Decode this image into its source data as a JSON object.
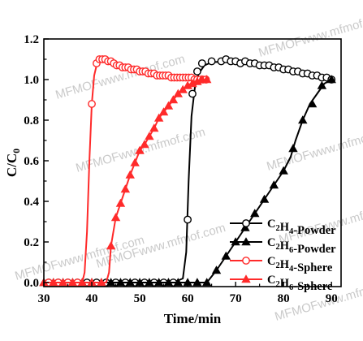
{
  "watermark": "MFMOFwww.mfmof.com",
  "chart_data": {
    "type": "line",
    "xlabel": "Time/min",
    "ylabel": "C/C0",
    "xlim": [
      30,
      92
    ],
    "ylim": [
      -0.02,
      1.2
    ],
    "xticks": [
      "30",
      "40",
      "50",
      "60",
      "70",
      "80",
      "90"
    ],
    "yticks": [
      "0.0",
      "0.2",
      "0.4",
      "0.6",
      "0.8",
      "1.0",
      "1.2"
    ],
    "legend_position": "bottom-right",
    "series": [
      {
        "name": "C2H4-Powder",
        "color": "#000000",
        "marker": "circle-open",
        "line": [
          [
            30,
            0
          ],
          [
            57,
            0
          ],
          [
            59,
            0.02
          ],
          [
            59.7,
            0.15
          ],
          [
            60.2,
            0.5
          ],
          [
            60.8,
            0.82
          ],
          [
            61.5,
            0.96
          ],
          [
            62.3,
            1.03
          ],
          [
            63.5,
            1.07
          ],
          [
            65,
            1.085
          ],
          [
            68,
            1.09
          ],
          [
            72,
            1.08
          ],
          [
            76,
            1.07
          ],
          [
            80,
            1.06
          ],
          [
            84,
            1.04
          ],
          [
            88,
            1.015
          ],
          [
            90,
            1.0
          ]
        ],
        "points": [
          [
            31,
            0
          ],
          [
            33,
            0
          ],
          [
            35,
            0
          ],
          [
            37,
            0
          ],
          [
            39,
            0
          ],
          [
            41,
            0
          ],
          [
            43,
            0
          ],
          [
            45,
            0
          ],
          [
            47,
            0
          ],
          [
            49,
            0
          ],
          [
            51,
            0
          ],
          [
            53,
            0
          ],
          [
            55,
            0
          ],
          [
            57,
            0
          ],
          [
            60,
            0.31
          ],
          [
            61,
            0.93
          ],
          [
            62,
            1.04
          ],
          [
            63,
            1.08
          ],
          [
            65,
            1.09
          ],
          [
            67,
            1.09
          ],
          [
            68,
            1.1
          ],
          [
            69,
            1.09
          ],
          [
            70,
            1.09
          ],
          [
            71,
            1.08
          ],
          [
            72,
            1.09
          ],
          [
            73,
            1.08
          ],
          [
            74,
            1.08
          ],
          [
            75,
            1.07
          ],
          [
            76,
            1.07
          ],
          [
            77,
            1.07
          ],
          [
            78,
            1.06
          ],
          [
            79,
            1.06
          ],
          [
            80,
            1.05
          ],
          [
            81,
            1.05
          ],
          [
            82,
            1.04
          ],
          [
            83,
            1.04
          ],
          [
            84,
            1.03
          ],
          [
            85,
            1.03
          ],
          [
            86,
            1.02
          ],
          [
            87,
            1.02
          ],
          [
            88,
            1.01
          ],
          [
            89,
            1.01
          ],
          [
            90,
            1.0
          ]
        ]
      },
      {
        "name": "C2H6-Powder",
        "color": "#000000",
        "marker": "triangle",
        "line": [
          [
            30,
            0
          ],
          [
            64,
            0
          ],
          [
            66,
            0.06
          ],
          [
            68,
            0.13
          ],
          [
            70,
            0.2
          ],
          [
            72,
            0.27
          ],
          [
            74,
            0.34
          ],
          [
            76,
            0.41
          ],
          [
            78,
            0.48
          ],
          [
            80,
            0.55
          ],
          [
            81.5,
            0.62
          ],
          [
            82.5,
            0.7
          ],
          [
            84,
            0.8
          ],
          [
            85.5,
            0.88
          ],
          [
            87,
            0.93
          ],
          [
            88.5,
            0.98
          ],
          [
            90,
            1.0
          ]
        ],
        "points": [
          [
            30,
            0
          ],
          [
            32,
            0
          ],
          [
            34,
            0
          ],
          [
            36,
            0
          ],
          [
            38,
            0
          ],
          [
            40,
            0
          ],
          [
            42,
            0
          ],
          [
            44,
            0
          ],
          [
            46,
            0
          ],
          [
            48,
            0
          ],
          [
            50,
            0
          ],
          [
            52,
            0
          ],
          [
            54,
            0
          ],
          [
            56,
            0
          ],
          [
            58,
            0
          ],
          [
            60,
            0
          ],
          [
            62,
            0
          ],
          [
            64,
            0
          ],
          [
            66,
            0.06
          ],
          [
            68,
            0.13
          ],
          [
            70,
            0.2
          ],
          [
            72,
            0.27
          ],
          [
            74,
            0.34
          ],
          [
            76,
            0.41
          ],
          [
            78,
            0.48
          ],
          [
            80,
            0.55
          ],
          [
            82,
            0.66
          ],
          [
            84,
            0.8
          ],
          [
            86,
            0.88
          ],
          [
            88,
            0.97
          ],
          [
            90,
            1.0
          ]
        ]
      },
      {
        "name": "C2H4-Sphere",
        "color": "#ff2a2a",
        "marker": "circle-open",
        "line": [
          [
            30,
            0
          ],
          [
            38,
            0
          ],
          [
            38.5,
            0.05
          ],
          [
            39,
            0.25
          ],
          [
            39.5,
            0.6
          ],
          [
            40,
            0.88
          ],
          [
            40.5,
            1.02
          ],
          [
            41.2,
            1.09
          ],
          [
            42.5,
            1.1
          ],
          [
            44,
            1.08
          ],
          [
            46,
            1.06
          ],
          [
            48,
            1.05
          ],
          [
            52,
            1.03
          ],
          [
            56,
            1.02
          ],
          [
            60,
            1.01
          ],
          [
            64,
            1.0
          ]
        ],
        "points": [
          [
            31,
            0
          ],
          [
            33,
            0
          ],
          [
            35,
            0
          ],
          [
            37,
            0
          ],
          [
            40,
            0.88
          ],
          [
            41,
            1.08
          ],
          [
            41.6,
            1.1
          ],
          [
            42.2,
            1.1
          ],
          [
            42.8,
            1.1
          ],
          [
            43.4,
            1.09
          ],
          [
            44,
            1.09
          ],
          [
            44.6,
            1.08
          ],
          [
            45.2,
            1.07
          ],
          [
            45.8,
            1.07
          ],
          [
            46.4,
            1.06
          ],
          [
            47,
            1.06
          ],
          [
            47.6,
            1.06
          ],
          [
            48.2,
            1.05
          ],
          [
            48.8,
            1.05
          ],
          [
            49.4,
            1.05
          ],
          [
            50,
            1.04
          ],
          [
            50.6,
            1.04
          ],
          [
            51.2,
            1.04
          ],
          [
            51.8,
            1.03
          ],
          [
            52.4,
            1.03
          ],
          [
            53,
            1.03
          ],
          [
            53.6,
            1.02
          ],
          [
            54.2,
            1.02
          ],
          [
            54.8,
            1.02
          ],
          [
            55.4,
            1.02
          ],
          [
            56,
            1.02
          ],
          [
            56.6,
            1.01
          ],
          [
            57.2,
            1.01
          ],
          [
            57.8,
            1.01
          ],
          [
            58.4,
            1.01
          ],
          [
            59,
            1.01
          ],
          [
            59.6,
            1.01
          ],
          [
            60.2,
            1.01
          ],
          [
            60.8,
            1.01
          ],
          [
            61.4,
            1.0
          ],
          [
            62,
            1.0
          ],
          [
            62.6,
            1.0
          ],
          [
            63.2,
            1.0
          ],
          [
            63.8,
            1.0
          ]
        ]
      },
      {
        "name": "C2H6-Sphere",
        "color": "#ff2a2a",
        "marker": "triangle",
        "line": [
          [
            30,
            0
          ],
          [
            43,
            0
          ],
          [
            43.6,
            0.05
          ],
          [
            44,
            0.18
          ],
          [
            45,
            0.32
          ],
          [
            46,
            0.39
          ],
          [
            47,
            0.46
          ],
          [
            48,
            0.53
          ],
          [
            49,
            0.59
          ],
          [
            50,
            0.65
          ],
          [
            51,
            0.68
          ],
          [
            52,
            0.72
          ],
          [
            53,
            0.76
          ],
          [
            54,
            0.81
          ],
          [
            55,
            0.84
          ],
          [
            56,
            0.87
          ],
          [
            57,
            0.9
          ],
          [
            58,
            0.93
          ],
          [
            59,
            0.95
          ],
          [
            60,
            0.97
          ],
          [
            61,
            0.985
          ],
          [
            62,
            0.995
          ],
          [
            64,
            1.0
          ]
        ],
        "points": [
          [
            30,
            0
          ],
          [
            32,
            0
          ],
          [
            34,
            0
          ],
          [
            36,
            0
          ],
          [
            38,
            0
          ],
          [
            40,
            0
          ],
          [
            42,
            0
          ],
          [
            44,
            0.18
          ],
          [
            45,
            0.32
          ],
          [
            46,
            0.39
          ],
          [
            47,
            0.46
          ],
          [
            48,
            0.53
          ],
          [
            49,
            0.59
          ],
          [
            50,
            0.65
          ],
          [
            51,
            0.68
          ],
          [
            52,
            0.72
          ],
          [
            53,
            0.76
          ],
          [
            54,
            0.81
          ],
          [
            55,
            0.84
          ],
          [
            56,
            0.87
          ],
          [
            57,
            0.9
          ],
          [
            58,
            0.93
          ],
          [
            59,
            0.95
          ],
          [
            60,
            0.97
          ],
          [
            61,
            0.98
          ],
          [
            62,
            0.99
          ],
          [
            63,
            1.0
          ],
          [
            64,
            1.0
          ]
        ]
      }
    ]
  }
}
